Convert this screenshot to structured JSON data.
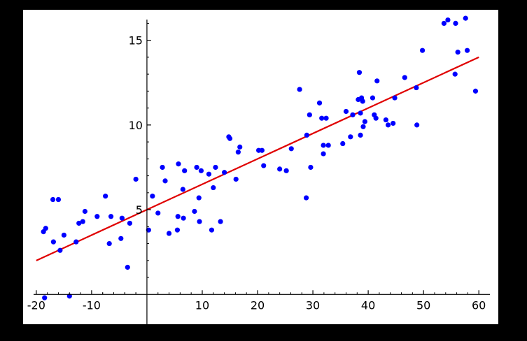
{
  "chart_data": {
    "type": "scatter",
    "title": "",
    "xlabel": "",
    "ylabel": "",
    "xlim": [
      -21.5,
      62
    ],
    "ylim": [
      -0.4,
      16.8
    ],
    "grid": false,
    "legend": "none",
    "colors": {
      "background": "#000000",
      "plot_area": "#ffffff",
      "points": "#0000ff",
      "fit_line": "#e00000",
      "axes": "#000000"
    },
    "x_ticks": [
      {
        "value": -20,
        "label": "-20"
      },
      {
        "value": -10,
        "label": "-10"
      },
      {
        "value": 10,
        "label": "10"
      },
      {
        "value": 20,
        "label": "20"
      },
      {
        "value": 30,
        "label": "30"
      },
      {
        "value": 40,
        "label": "40"
      },
      {
        "value": 50,
        "label": "50"
      },
      {
        "value": 60,
        "label": "60"
      }
    ],
    "y_ticks": [
      {
        "value": 5,
        "label": "5"
      },
      {
        "value": 10,
        "label": "10"
      },
      {
        "value": 15,
        "label": "15"
      }
    ],
    "fit_line": {
      "x": [
        -20,
        60
      ],
      "y": [
        2.0,
        14.0
      ]
    },
    "points": [
      [
        -18.5,
        -0.2
      ],
      [
        -18.7,
        3.7
      ],
      [
        -18.3,
        3.9
      ],
      [
        -17.0,
        5.6
      ],
      [
        -16.9,
        3.1
      ],
      [
        -16.0,
        5.6
      ],
      [
        -15.7,
        2.6
      ],
      [
        -15.0,
        3.5
      ],
      [
        -14.0,
        -0.1
      ],
      [
        -12.8,
        3.1
      ],
      [
        -12.3,
        4.2
      ],
      [
        -11.6,
        4.3
      ],
      [
        -11.2,
        4.9
      ],
      [
        -9.0,
        4.6
      ],
      [
        -7.5,
        5.8
      ],
      [
        -6.8,
        3.0
      ],
      [
        -6.5,
        4.6
      ],
      [
        -4.7,
        3.3
      ],
      [
        -4.5,
        4.5
      ],
      [
        -3.5,
        1.6
      ],
      [
        -3.1,
        4.2
      ],
      [
        -2.0,
        6.8
      ],
      [
        0.3,
        3.8
      ],
      [
        1.0,
        5.8
      ],
      [
        2.0,
        4.8
      ],
      [
        2.8,
        7.5
      ],
      [
        3.3,
        6.7
      ],
      [
        4.0,
        3.6
      ],
      [
        5.6,
        4.6
      ],
      [
        5.5,
        3.8
      ],
      [
        5.7,
        7.7
      ],
      [
        6.5,
        6.2
      ],
      [
        6.6,
        4.5
      ],
      [
        6.8,
        7.3
      ],
      [
        8.6,
        4.9
      ],
      [
        9.0,
        7.5
      ],
      [
        9.4,
        5.7
      ],
      [
        9.5,
        4.3
      ],
      [
        9.8,
        7.3
      ],
      [
        11.2,
        7.1
      ],
      [
        11.7,
        3.8
      ],
      [
        12.0,
        6.3
      ],
      [
        12.4,
        7.5
      ],
      [
        13.3,
        4.3
      ],
      [
        14.0,
        7.2
      ],
      [
        14.8,
        9.3
      ],
      [
        15.0,
        9.2
      ],
      [
        16.1,
        6.8
      ],
      [
        16.5,
        8.4
      ],
      [
        16.8,
        8.7
      ],
      [
        20.2,
        8.5
      ],
      [
        20.8,
        8.5
      ],
      [
        21.1,
        7.6
      ],
      [
        24.0,
        7.4
      ],
      [
        25.2,
        7.3
      ],
      [
        26.1,
        8.6
      ],
      [
        27.6,
        12.1
      ],
      [
        28.8,
        5.7
      ],
      [
        28.9,
        9.4
      ],
      [
        29.4,
        10.6
      ],
      [
        29.6,
        7.5
      ],
      [
        31.2,
        11.3
      ],
      [
        31.6,
        10.4
      ],
      [
        31.9,
        8.3
      ],
      [
        31.9,
        8.8
      ],
      [
        32.4,
        10.4
      ],
      [
        32.8,
        8.8
      ],
      [
        35.4,
        8.9
      ],
      [
        36.0,
        10.8
      ],
      [
        36.8,
        9.3
      ],
      [
        37.2,
        10.6
      ],
      [
        38.2,
        11.5
      ],
      [
        38.4,
        13.1
      ],
      [
        38.6,
        10.7
      ],
      [
        38.6,
        9.4
      ],
      [
        38.8,
        11.6
      ],
      [
        39.0,
        11.4
      ],
      [
        39.1,
        9.9
      ],
      [
        39.4,
        10.2
      ],
      [
        40.8,
        11.6
      ],
      [
        41.1,
        10.6
      ],
      [
        41.4,
        10.4
      ],
      [
        41.6,
        12.6
      ],
      [
        43.2,
        10.3
      ],
      [
        43.6,
        10.0
      ],
      [
        44.5,
        10.1
      ],
      [
        44.8,
        11.6
      ],
      [
        46.6,
        12.8
      ],
      [
        48.7,
        12.2
      ],
      [
        48.8,
        10.0
      ],
      [
        49.8,
        14.4
      ],
      [
        53.7,
        16.0
      ],
      [
        54.4,
        16.2
      ],
      [
        55.7,
        13.0
      ],
      [
        55.8,
        16.0
      ],
      [
        56.2,
        14.3
      ],
      [
        57.6,
        16.3
      ],
      [
        57.9,
        14.4
      ],
      [
        59.4,
        12.0
      ]
    ]
  }
}
